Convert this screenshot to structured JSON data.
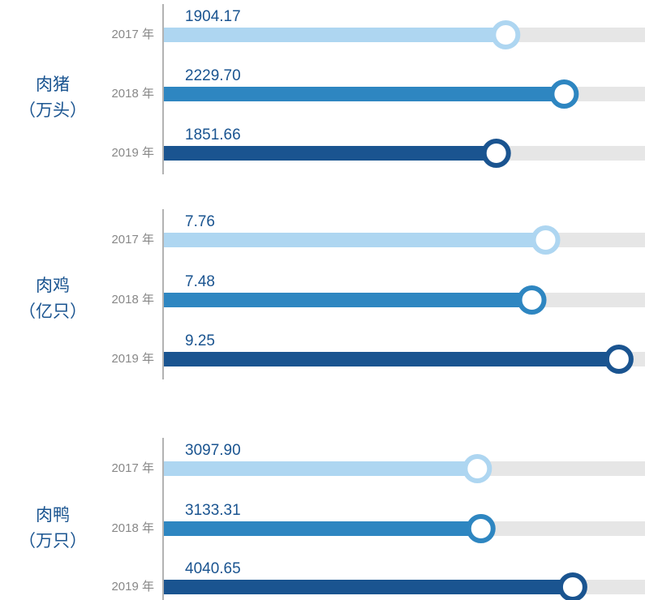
{
  "chart_data": [
    {
      "type": "bar",
      "title": "肉猪",
      "subtitle": "（万头）",
      "categories": [
        "2017 年",
        "2018 年",
        "2019 年"
      ],
      "values": [
        1904.17,
        2229.7,
        1851.66
      ],
      "value_labels": [
        "1904.17",
        "2229.70",
        "1851.66"
      ],
      "colors": [
        "#aed6f1",
        "#2e86c1",
        "#1a5490"
      ],
      "track_color": "#e6e6e6",
      "xlim": [
        0,
        2680
      ]
    },
    {
      "type": "bar",
      "title": "肉鸡",
      "subtitle": "（亿只）",
      "categories": [
        "2017 年",
        "2018 年",
        "2019 年"
      ],
      "values": [
        7.76,
        7.48,
        9.25
      ],
      "value_labels": [
        "7.76",
        "7.48",
        "9.25"
      ],
      "colors": [
        "#aed6f1",
        "#2e86c1",
        "#1a5490"
      ],
      "track_color": "#e6e6e6",
      "xlim": [
        0,
        9.78
      ]
    },
    {
      "type": "bar",
      "title": "肉鸭",
      "subtitle": "（万只）",
      "categories": [
        "2017 年",
        "2018 年",
        "2019 年"
      ],
      "values": [
        3097.9,
        3133.31,
        4040.65
      ],
      "value_labels": [
        "3097.90",
        "3133.31",
        "4040.65"
      ],
      "colors": [
        "#aed6f1",
        "#2e86c1",
        "#1a5490"
      ],
      "track_color": "#e6e6e6",
      "xlim": [
        0,
        4755
      ]
    }
  ]
}
